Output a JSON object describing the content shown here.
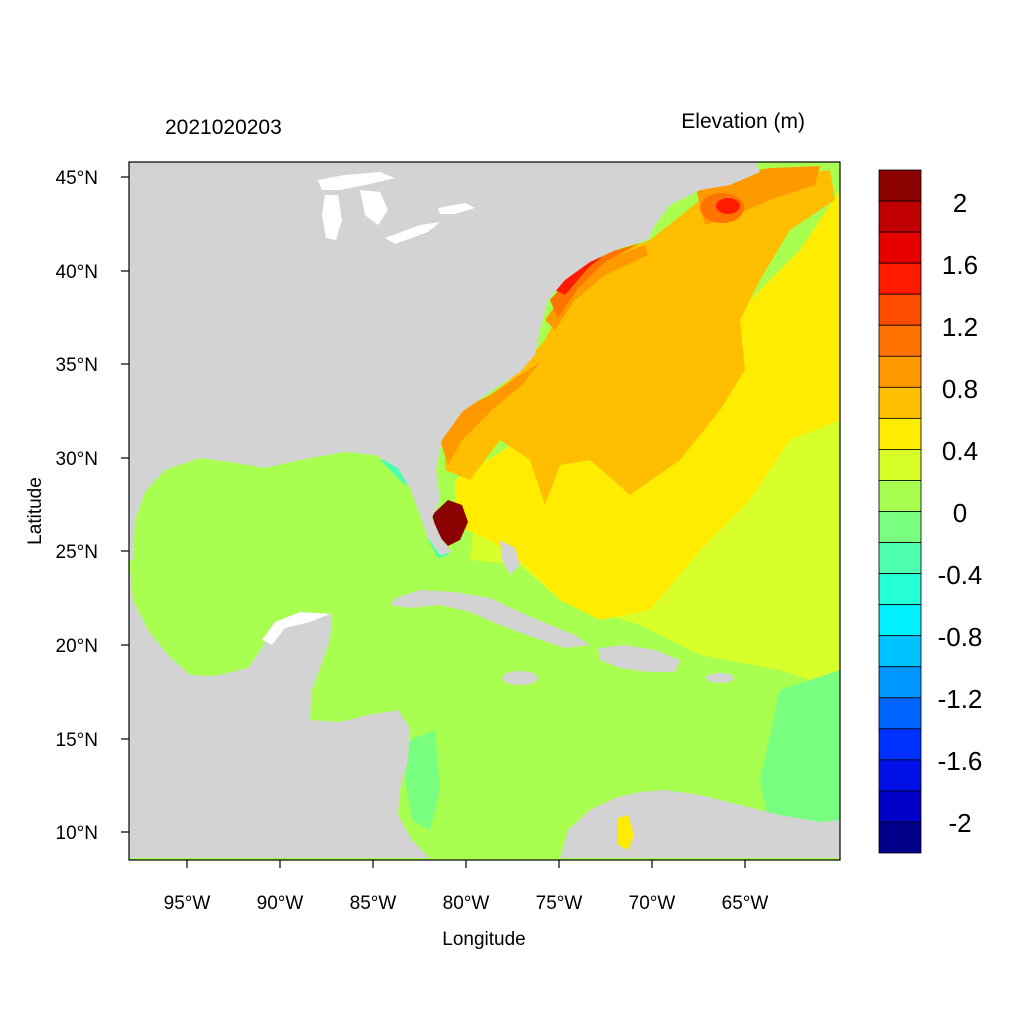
{
  "header": {
    "date_label": "2021020203",
    "variable_label": "Elevation (m)"
  },
  "axes": {
    "xlabel": "Longitude",
    "ylabel": "Latitude",
    "x_ticks": [
      "95°W",
      "90°W",
      "85°W",
      "80°W",
      "75°W",
      "70°W",
      "65°W"
    ],
    "y_ticks": [
      "45°N",
      "40°N",
      "35°N",
      "30°N",
      "25°N",
      "20°N",
      "15°N",
      "10°N"
    ]
  },
  "colorbar": {
    "labels": [
      "2",
      "1.6",
      "1.2",
      "0.8",
      "0.4",
      "0",
      "-0.4",
      "-0.8",
      "-1.2",
      "-1.6",
      "-2"
    ],
    "colors": [
      "#8b0000",
      "#c00000",
      "#e60000",
      "#ff1a00",
      "#ff4d00",
      "#ff7300",
      "#ff9900",
      "#ffbf00",
      "#ffec00",
      "#d9ff2a",
      "#a8ff50",
      "#78ff80",
      "#4dffae",
      "#25ffd6",
      "#00f0ff",
      "#00c4ff",
      "#0096ff",
      "#0064ff",
      "#0032ff",
      "#0010e6",
      "#0000c8",
      "#00008b"
    ]
  },
  "colors": {
    "land": "#d3d3d3",
    "lake": "#ffffff",
    "level_0": "#a8ff50",
    "level_0_2": "#d9ff2a",
    "level_0_4": "#ffec00",
    "level_0_6": "#ffbf00",
    "level_0_8": "#ff9900",
    "level_1_0": "#ff7300",
    "level_1_4": "#ff1a00",
    "level_2": "#8b0000",
    "level_neg_0_2": "#78ff80",
    "level_neg_0_4": "#4dffae"
  }
}
